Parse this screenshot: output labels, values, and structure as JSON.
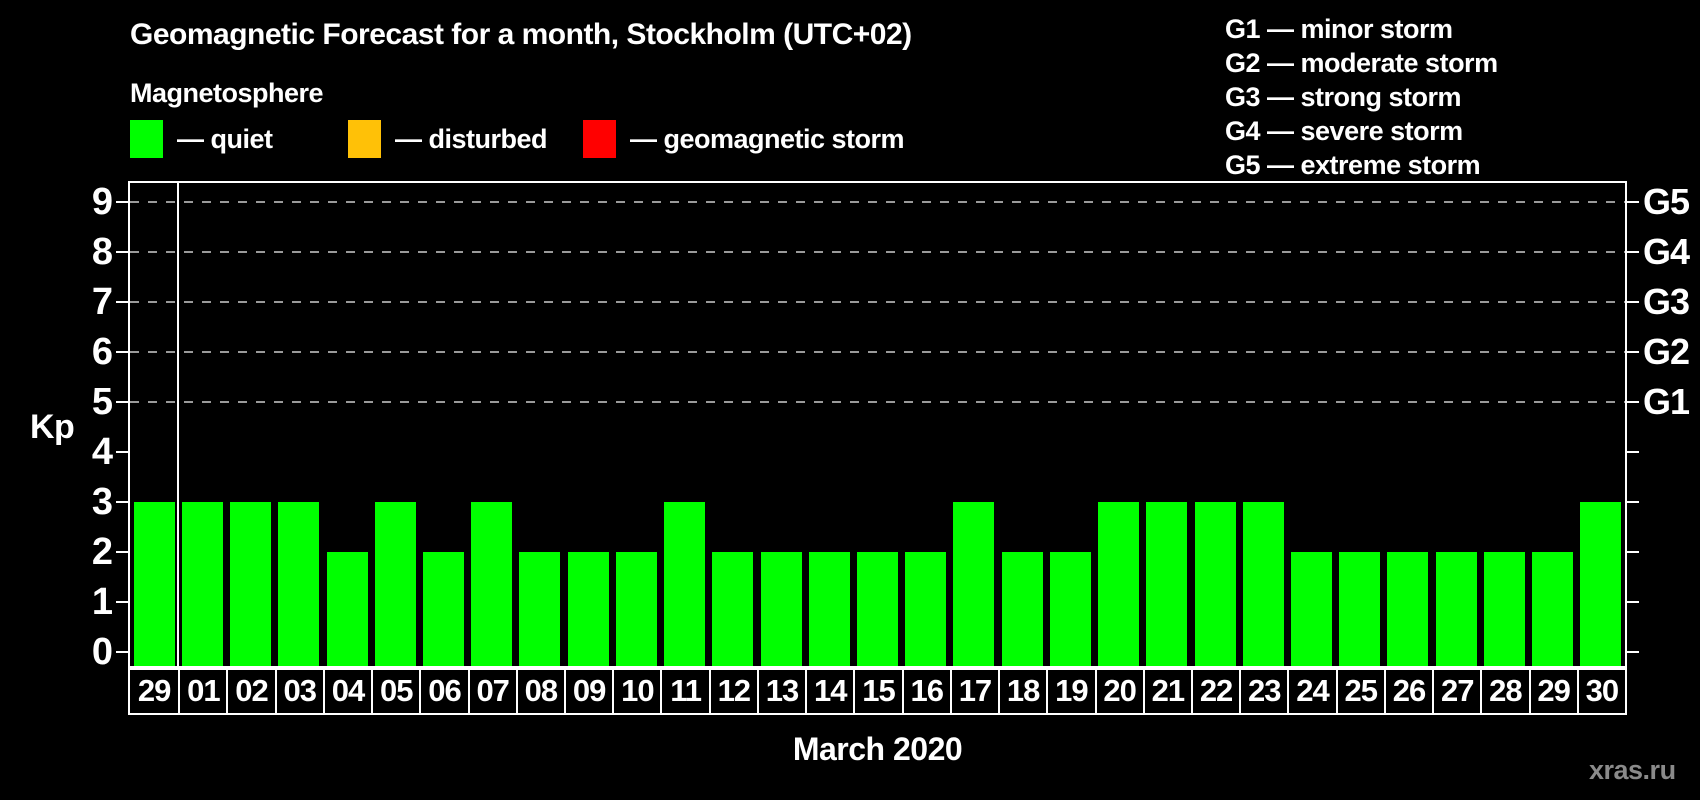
{
  "page": {
    "background": "#000000",
    "watermark": "xras.ru"
  },
  "header": {
    "title": "Geomagnetic Forecast for a month, Stockholm (UTC+02)",
    "subtitle": "Magnetosphere"
  },
  "legend": {
    "items": [
      {
        "name": "quiet",
        "label": "— quiet",
        "color": "#00ff00"
      },
      {
        "name": "disturbed",
        "label": "— disturbed",
        "color": "#ffc107"
      },
      {
        "name": "geomagnetic-storm",
        "label": "— geomagnetic storm",
        "color": "#ff0000"
      }
    ]
  },
  "storm_scale_legend": {
    "lines": [
      "G1 — minor storm",
      "G2 — moderate storm",
      "G3 — strong storm",
      "G4 — severe storm",
      "G5 — extreme storm"
    ]
  },
  "chart_data": {
    "type": "bar",
    "title": "Geomagnetic Forecast for a month, Stockholm (UTC+02)",
    "xlabel": "March 2020",
    "ylabel": "Kp",
    "ylim": [
      0,
      9
    ],
    "yticks": [
      0,
      1,
      2,
      3,
      4,
      5,
      6,
      7,
      8,
      9
    ],
    "gridlines_at": [
      5,
      6,
      7,
      8,
      9
    ],
    "gridline_style": "dashed",
    "gridline_color": "#9a9a9a",
    "right_axis": [
      {
        "label": "G1",
        "kp": 5
      },
      {
        "label": "G2",
        "kp": 6
      },
      {
        "label": "G3",
        "kp": 7
      },
      {
        "label": "G4",
        "kp": 8
      },
      {
        "label": "G5",
        "kp": 9
      }
    ],
    "categories": [
      "29",
      "01",
      "02",
      "03",
      "04",
      "05",
      "06",
      "07",
      "08",
      "09",
      "10",
      "11",
      "12",
      "13",
      "14",
      "15",
      "16",
      "17",
      "18",
      "19",
      "20",
      "21",
      "22",
      "23",
      "24",
      "25",
      "26",
      "27",
      "28",
      "29",
      "30"
    ],
    "values": [
      3,
      3,
      3,
      3,
      2,
      3,
      2,
      3,
      2,
      2,
      2,
      3,
      2,
      2,
      2,
      2,
      2,
      3,
      2,
      2,
      3,
      3,
      3,
      3,
      2,
      2,
      2,
      2,
      2,
      2,
      3
    ],
    "bar_color": "#00ff00",
    "prev_month_separator_after_index": 0
  }
}
